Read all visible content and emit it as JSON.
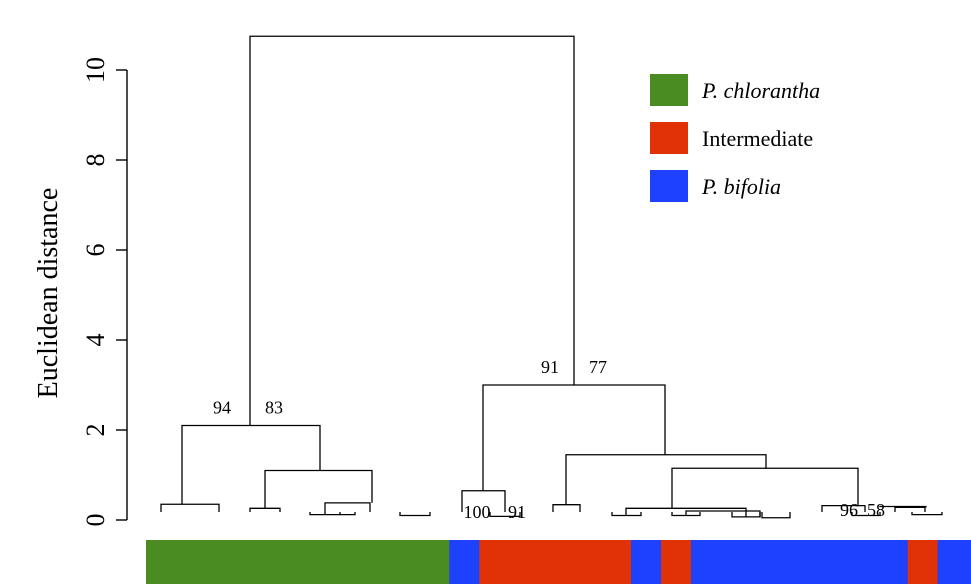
{
  "chart_data": {
    "type": "dendrogram",
    "ylabel": "Euclidean distance",
    "y_ticks": [
      0,
      2,
      4,
      6,
      8,
      10
    ],
    "ylim": [
      0,
      11
    ],
    "legend": {
      "placement": "top-right",
      "items": [
        {
          "label": "P. chlorantha",
          "italic": true,
          "color": "#4a8c22"
        },
        {
          "label": "Intermediate",
          "italic": false,
          "color": "#e03206"
        },
        {
          "label": "P. bifolia",
          "italic": true,
          "color": "#1e40ff"
        }
      ]
    },
    "merges": [
      {
        "height": 10.75,
        "left": 1,
        "right": 13
      },
      {
        "height": 2.1,
        "left": 2,
        "right": 3,
        "labels": [
          "94",
          "83"
        ]
      },
      {
        "height": 0.35,
        "left": 0.27,
        "right": 0.29
      },
      {
        "height": 1.1,
        "left": 4,
        "right": 5
      },
      {
        "height": 0.26,
        "left": 0.45,
        "right": 0.45
      },
      {
        "height": 0.38,
        "left": 6,
        "right": 0.55
      },
      {
        "height": 0.12,
        "left": 0.25,
        "right": 0.42
      },
      {
        "height": 3.0,
        "left": 7,
        "right": 8,
        "labels": [
          "91",
          "77"
        ]
      },
      {
        "height": 0.65,
        "left": 0.85,
        "right": 0.9
      },
      {
        "height": 2.45,
        "left": 9,
        "right": 10
      },
      {
        "height": 0.34,
        "left": 0.93,
        "right": 1.0
      },
      {
        "height": 1.45,
        "left": 11,
        "right": 12
      },
      {
        "height": 1.1,
        "left": 14,
        "right": 16
      },
      {
        "height": 0.28,
        "left": 15,
        "right": 1.0
      },
      {
        "height": 0.2,
        "left": 0.68,
        "right": 0.75
      },
      {
        "height": 0.09,
        "left": 0.74,
        "right": 0.79
      },
      {
        "height": 0.35,
        "left": 17,
        "right": 18
      },
      {
        "height": 0.3,
        "left": 0.95,
        "right": 0.98
      },
      {
        "height": 0.1,
        "left": 1.0,
        "right": 1.1
      }
    ],
    "node_labels": [
      "100",
      "91",
      "96",
      "58"
    ],
    "group_bar": [
      {
        "group": "P. chlorantha",
        "fraction": 0.364,
        "color": "#4a8c22"
      },
      {
        "group": "P. bifolia",
        "fraction": 0.036,
        "color": "#1e40ff"
      },
      {
        "group": "Intermediate",
        "fraction": 0.182,
        "color": "#e03206"
      },
      {
        "group": "P. bifolia",
        "fraction": 0.036,
        "color": "#1e40ff"
      },
      {
        "group": "Intermediate",
        "fraction": 0.036,
        "color": "#e03206"
      },
      {
        "group": "P. bifolia",
        "fraction": 0.26,
        "color": "#1e40ff"
      },
      {
        "group": "Intermediate",
        "fraction": 0.036,
        "color": "#e03206"
      },
      {
        "group": "P. bifolia",
        "fraction": 0.04,
        "color": "#1e40ff"
      }
    ]
  }
}
